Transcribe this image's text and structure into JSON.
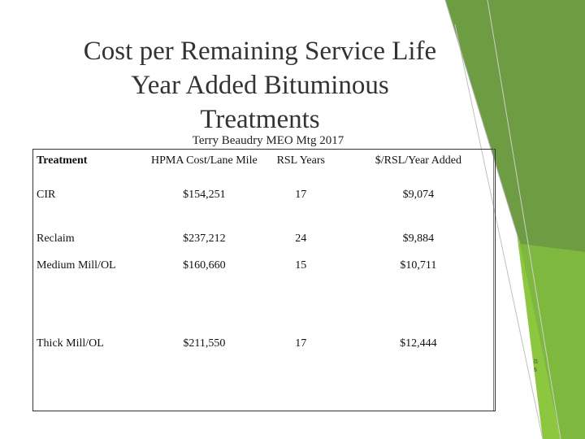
{
  "slide": {
    "title_lines": [
      "Cost per Remaining Service Life",
      "Year Added Bituminous",
      "Treatments"
    ],
    "subtitle": "Terry Beaudry MEO Mtg 2017",
    "colors": {
      "green_light": "#8dc63f",
      "green_dark": "#6a9a3a",
      "title_text": "#333333"
    }
  },
  "table": {
    "headers": [
      "Treatment",
      "HPMA Cost/Lane Mile",
      "RSL Years",
      "$/RSL/Year Added"
    ],
    "rows": [
      [
        "CIR",
        "$154,251",
        "17",
        "$9,074"
      ],
      [
        "Reclaim",
        "$237,212",
        "24",
        "$9,884"
      ],
      [
        "Medium Mill/OL",
        "$160,660",
        "15",
        "$10,711"
      ],
      [
        "Thick Mill/OL",
        "$211,550",
        "17",
        "$12,444"
      ]
    ]
  },
  "artifact": {
    "line1": "n",
    "line2": "s"
  }
}
